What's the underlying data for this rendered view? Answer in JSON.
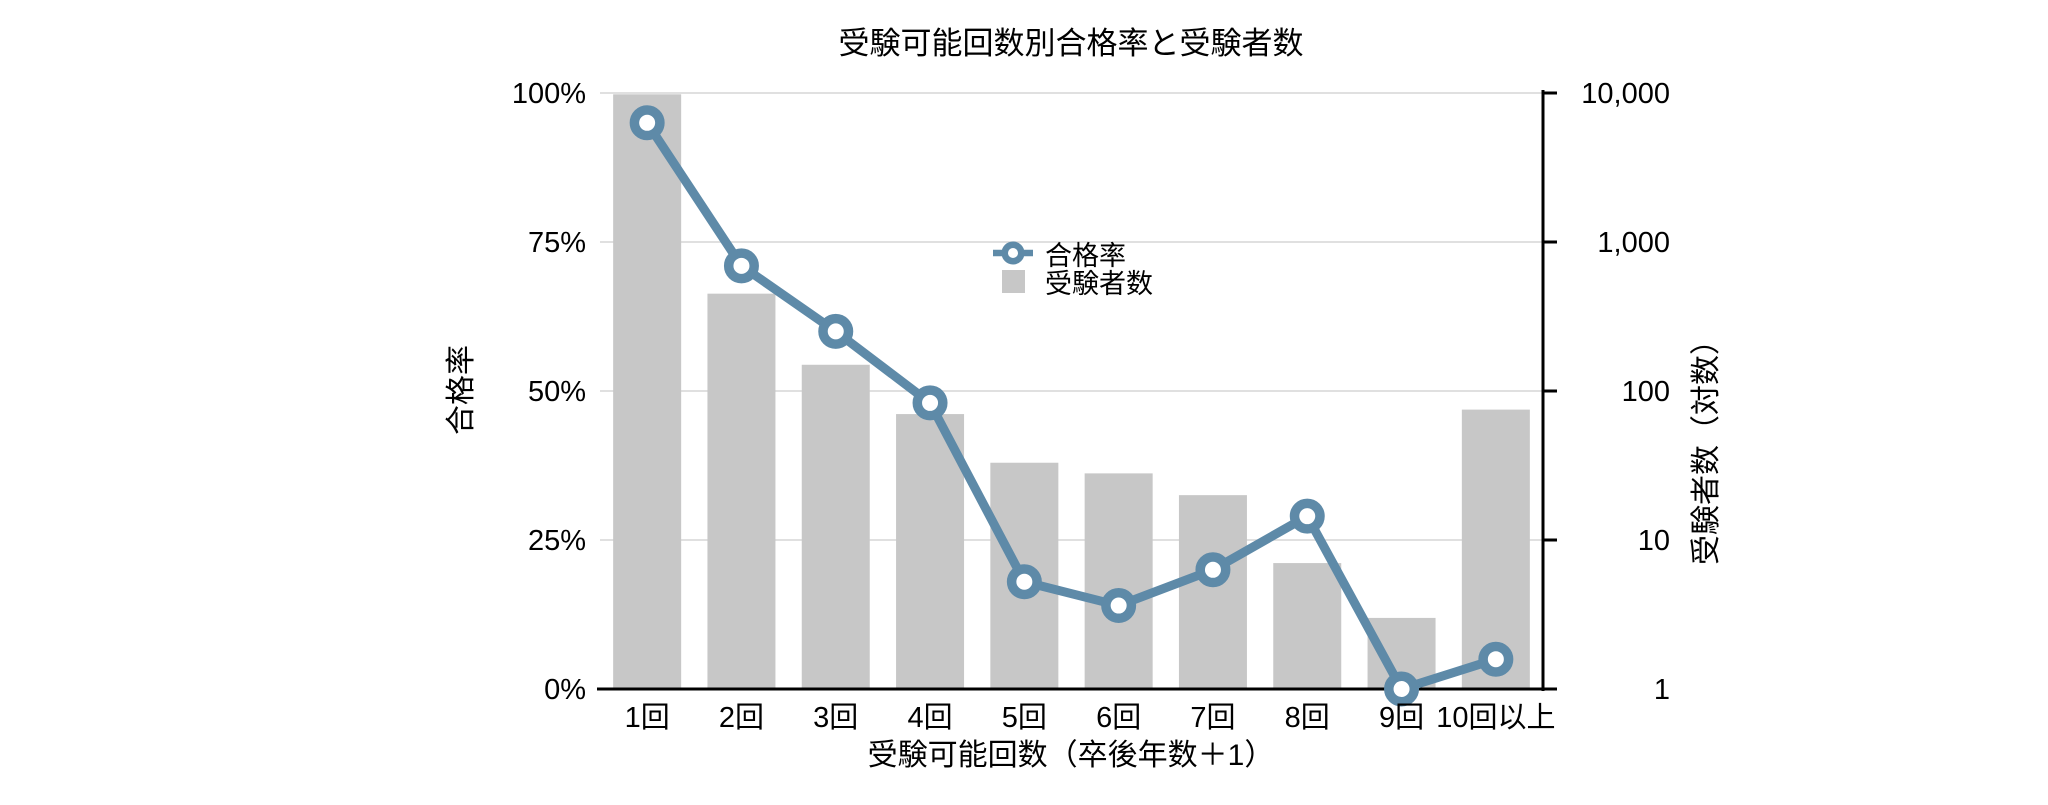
{
  "chart_data": {
    "type": "combo",
    "title": "受験可能回数別合格率と受験者数",
    "xlabel": "受験可能回数（卒後年数＋1）",
    "ylabel_left": "合格率",
    "ylabel_right": "受験者数（対数）",
    "categories": [
      "1回",
      "2回",
      "3回",
      "4回",
      "5回",
      "6回",
      "7回",
      "8回",
      "9回",
      "10回以上"
    ],
    "series": [
      {
        "name": "合格率",
        "type": "line",
        "axis": "left",
        "unit": "%",
        "marker": "open-circle",
        "color": "#5e8aa8",
        "values": [
          95,
          71,
          60,
          48,
          18,
          14,
          20,
          29,
          0,
          5
        ]
      },
      {
        "name": "受験者数",
        "type": "bar",
        "axis": "right",
        "color": "#c7c7c7",
        "values": [
          9800,
          450,
          150,
          70,
          33,
          28,
          20,
          7,
          3,
          75
        ]
      }
    ],
    "axes": {
      "left": {
        "min": 0,
        "max": 100,
        "ticks": [
          "100%",
          "75%",
          "50%",
          "25%",
          "0%"
        ]
      },
      "right": {
        "scale": "log",
        "min": 1,
        "max": 10000,
        "ticks": [
          "10,000",
          "1,000",
          "100",
          "10",
          "1"
        ]
      }
    },
    "legend": {
      "position": "inside-top",
      "items": [
        "合格率",
        "受験者数"
      ]
    },
    "grid": {
      "horizontal": true,
      "color": "#d6d6d6"
    },
    "colors": {
      "axis": "#000000",
      "text": "#000000",
      "background": "#ffffff",
      "marker_fill": "#ffffff"
    }
  }
}
